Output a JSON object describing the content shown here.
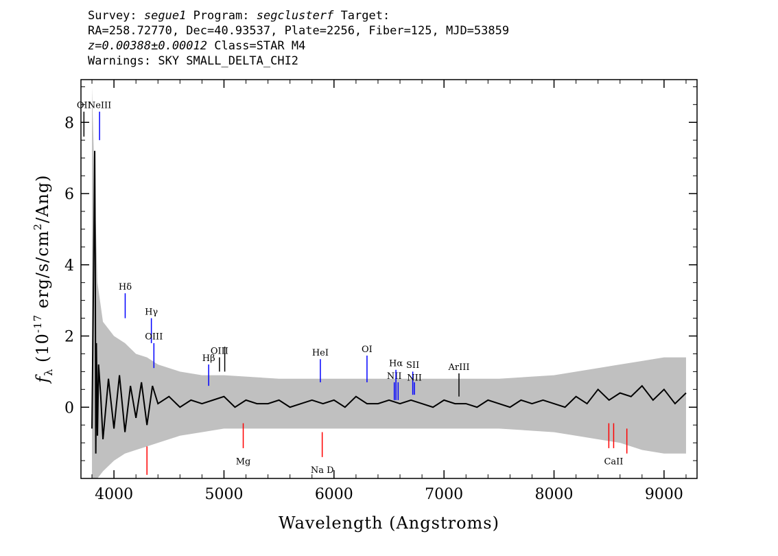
{
  "header": {
    "survey_label": "Survey:",
    "survey": "segue1",
    "program_label": "Program:",
    "program": "segclusterf",
    "target_label": "Target:",
    "line2": "RA=258.72770, Dec=40.93537, Plate=2256, Fiber=125, MJD=53859",
    "redshift": "z=0.00388±0.00012",
    "class": "Class=STAR M4",
    "warnings": "Warnings: SKY SMALL_DELTA_CHI2"
  },
  "chart_data": {
    "type": "line",
    "title": "",
    "xlabel": "Wavelength (Angstroms)",
    "ylabel": "f_λ (10^-17 erg/s/cm^2/Ang)",
    "xlim": [
      3700,
      9300
    ],
    "ylim": [
      -2.0,
      9.2
    ],
    "x_ticks": [
      4000,
      5000,
      6000,
      7000,
      8000,
      9000
    ],
    "y_ticks": [
      0,
      2,
      4,
      6,
      8
    ],
    "series": [
      {
        "role": "flux",
        "color": "#000000",
        "x": [
          3800,
          3815,
          3825,
          3830,
          3835,
          3840,
          3850,
          3860,
          3880,
          3900,
          3950,
          4000,
          4050,
          4100,
          4150,
          4200,
          4250,
          4300,
          4350,
          4400,
          4500,
          4600,
          4700,
          4800,
          4900,
          5000,
          5100,
          5200,
          5300,
          5400,
          5500,
          5600,
          5700,
          5800,
          5900,
          6000,
          6100,
          6200,
          6300,
          6400,
          6500,
          6600,
          6700,
          6800,
          6900,
          7000,
          7100,
          7200,
          7300,
          7400,
          7500,
          7600,
          7700,
          7800,
          7900,
          8000,
          8100,
          8200,
          8300,
          8400,
          8500,
          8600,
          8700,
          8800,
          8900,
          9000,
          9100,
          9200
        ],
        "y": [
          -0.6,
          3.9,
          7.2,
          4.1,
          -1.3,
          1.8,
          -0.8,
          1.2,
          0.3,
          -0.9,
          0.8,
          -0.6,
          0.9,
          -0.7,
          0.6,
          -0.3,
          0.7,
          -0.5,
          0.6,
          0.1,
          0.3,
          0.0,
          0.2,
          0.1,
          0.2,
          0.3,
          0.0,
          0.2,
          0.1,
          0.1,
          0.2,
          0.0,
          0.1,
          0.2,
          0.1,
          0.2,
          0.0,
          0.3,
          0.1,
          0.1,
          0.2,
          0.1,
          0.2,
          0.1,
          0.0,
          0.2,
          0.1,
          0.1,
          0.0,
          0.2,
          0.1,
          0.0,
          0.2,
          0.1,
          0.2,
          0.1,
          0.0,
          0.3,
          0.1,
          0.5,
          0.2,
          0.4,
          0.3,
          0.6,
          0.2,
          0.5,
          0.1,
          0.4
        ]
      },
      {
        "role": "error band",
        "color": "#c0c0c0",
        "x": [
          3800,
          3850,
          3900,
          4000,
          4100,
          4200,
          4300,
          4400,
          4600,
          4800,
          5000,
          5500,
          6000,
          6500,
          7000,
          7500,
          8000,
          8400,
          8600,
          8800,
          9000,
          9200
        ],
        "upper": [
          9.0,
          3.5,
          2.4,
          2.0,
          1.8,
          1.5,
          1.4,
          1.2,
          1.0,
          0.9,
          0.9,
          0.8,
          0.8,
          0.8,
          0.8,
          0.8,
          0.9,
          1.1,
          1.2,
          1.3,
          1.4,
          1.4
        ],
        "lower": [
          -2.0,
          -2.0,
          -1.8,
          -1.5,
          -1.3,
          -1.2,
          -1.1,
          -1.0,
          -0.8,
          -0.7,
          -0.6,
          -0.6,
          -0.6,
          -0.6,
          -0.6,
          -0.6,
          -0.7,
          -0.9,
          -1.0,
          -1.2,
          -1.3,
          -1.3
        ]
      }
    ],
    "line_markers": [
      {
        "label": "OII",
        "x": 3727,
        "y1": 7.6,
        "y2": 8.3,
        "color": "#000000",
        "label_y": 8.4
      },
      {
        "label": "NeIII",
        "x": 3869,
        "y1": 7.5,
        "y2": 8.3,
        "color": "#0000ff",
        "label_y": 8.4
      },
      {
        "label": "Hδ",
        "x": 4102,
        "y1": 2.5,
        "y2": 3.2,
        "color": "#0000ff",
        "label_y": 3.3
      },
      {
        "label": "Hγ",
        "x": 4340,
        "y1": 1.8,
        "y2": 2.5,
        "color": "#0000ff",
        "label_y": 2.6
      },
      {
        "label": "OIII",
        "x": 4363,
        "y1": 1.1,
        "y2": 1.8,
        "color": "#0000ff",
        "label_y": 1.9
      },
      {
        "label": "Hβ",
        "x": 4861,
        "y1": 0.6,
        "y2": 1.2,
        "color": "#0000ff",
        "label_y": 1.3
      },
      {
        "label": "OIII",
        "x": 4959,
        "y1": 1.0,
        "y2": 1.4,
        "color": "#000000",
        "label_y": 1.5
      },
      {
        "label": "",
        "x": 5007,
        "y1": 1.0,
        "y2": 1.7,
        "color": "#000000",
        "label_y": 1.7
      },
      {
        "label": "HeI",
        "x": 5876,
        "y1": 0.7,
        "y2": 1.35,
        "color": "#0000ff",
        "label_y": 1.45
      },
      {
        "label": "OI",
        "x": 6300,
        "y1": 0.7,
        "y2": 1.45,
        "color": "#0000ff",
        "label_y": 1.55
      },
      {
        "label": "NII",
        "x": 6548,
        "y1": 0.2,
        "y2": 0.7,
        "color": "#0000ff",
        "label_y": 0.8
      },
      {
        "label": "Hα",
        "x": 6563,
        "y1": 0.2,
        "y2": 1.05,
        "color": "#0000ff",
        "label_y": 1.15
      },
      {
        "label": "",
        "x": 6583,
        "y1": 0.2,
        "y2": 0.7,
        "color": "#0000ff",
        "label_y": 0.7
      },
      {
        "label": "SII",
        "x": 6716,
        "y1": 0.35,
        "y2": 1.0,
        "color": "#0000ff",
        "label_y": 1.1
      },
      {
        "label": "NII",
        "x": 6731,
        "y1": 0.35,
        "y2": 0.7,
        "color": "#0000ff",
        "label_y": 0.75
      },
      {
        "label": "ArIII",
        "x": 7136,
        "y1": 0.3,
        "y2": 0.95,
        "color": "#000000",
        "label_y": 1.05
      },
      {
        "label": "Mg",
        "x": 5175,
        "y1": -1.15,
        "y2": -0.45,
        "color": "#ff0000",
        "label_y": -1.6
      },
      {
        "label": "Na D",
        "x": 5893,
        "y1": -1.4,
        "y2": -0.7,
        "color": "#ff0000",
        "label_y": -1.85
      },
      {
        "label": "",
        "x": 4300,
        "y1": -1.9,
        "y2": -1.1,
        "color": "#ff0000",
        "label_y": -1.9
      },
      {
        "label": "CaII",
        "x": 8542,
        "y1": -1.15,
        "y2": -0.45,
        "color": "#ff0000",
        "label_y": -1.6
      },
      {
        "label": "",
        "x": 8498,
        "y1": -1.15,
        "y2": -0.45,
        "color": "#ff0000",
        "label_y": -1.15
      },
      {
        "label": "",
        "x": 8662,
        "y1": -1.3,
        "y2": -0.6,
        "color": "#ff0000",
        "label_y": -1.3
      }
    ]
  }
}
